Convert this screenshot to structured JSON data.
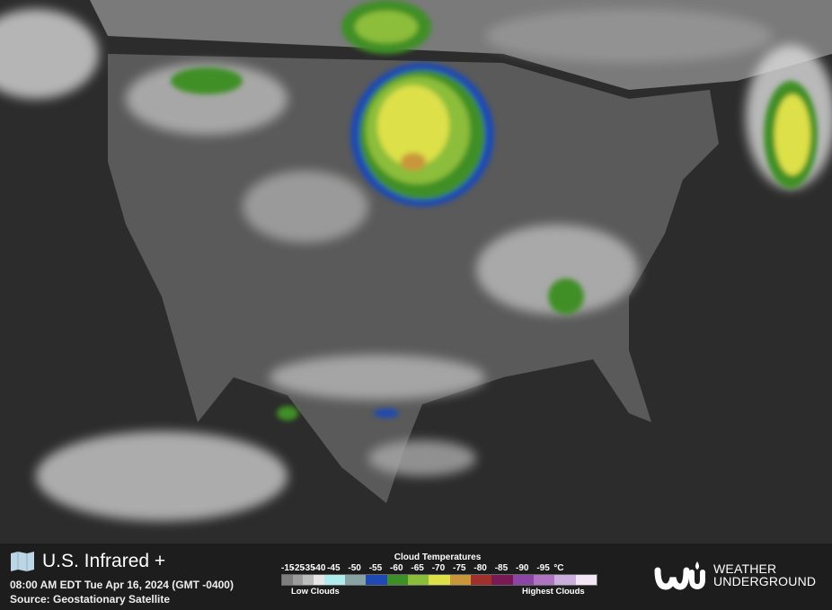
{
  "header": {
    "title": "U.S. Infrared +",
    "timestamp": "08:00 AM EDT Tue Apr 16, 2024 (GMT -0400)",
    "source": "Source: Geostationary Satellite",
    "map_icon": "folded-map-icon"
  },
  "legend": {
    "title": "Cloud Temperatures",
    "unit": "°C",
    "low_label": "Low Clouds",
    "high_label": "Highest Clouds",
    "ticks": [
      "-15",
      "-25",
      "-35",
      "-40",
      "-45",
      "-50",
      "-55",
      "-60",
      "-65",
      "-70",
      "-75",
      "-80",
      "-85",
      "-90",
      "-95"
    ],
    "colors": [
      "#7e7e7e",
      "#9c9c9c",
      "#bcbcbc",
      "#e6e6e6",
      "#b0ecec",
      "#88a3a3",
      "#1f4ab5",
      "#3f8f28",
      "#8cbd3a",
      "#dde048",
      "#c9963a",
      "#a0302c",
      "#7a1a55",
      "#8a45a5",
      "#ae74c0",
      "#ccaedc",
      "#f2e6f4"
    ]
  },
  "brand": {
    "name_line1": "WEATHER",
    "name_line2": "UNDERGROUND",
    "logo": "wu-logo"
  }
}
